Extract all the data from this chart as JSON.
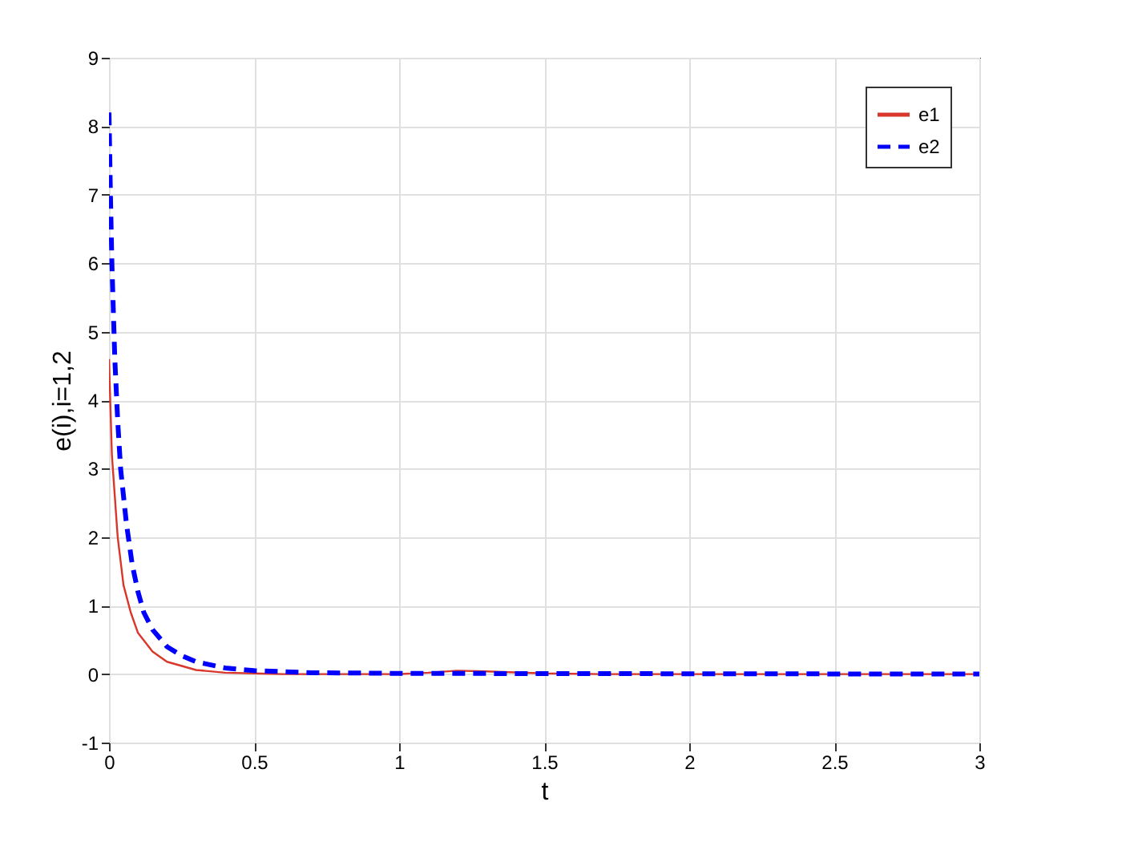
{
  "chart_data": {
    "type": "line",
    "xlabel": "t",
    "ylabel": "e(i),i=1,2",
    "xlim": [
      0,
      3
    ],
    "ylim": [
      -1,
      9
    ],
    "xticks": [
      0,
      0.5,
      1,
      1.5,
      2,
      2.5,
      3
    ],
    "yticks": [
      -1,
      0,
      1,
      2,
      3,
      4,
      5,
      6,
      7,
      8,
      9
    ],
    "grid": true,
    "legend": "top right",
    "series": [
      {
        "name": "e1",
        "color": "#d9372b",
        "line_style": "solid",
        "x": [
          0,
          0.01,
          0.02,
          0.03,
          0.05,
          0.075,
          0.1,
          0.15,
          0.2,
          0.3,
          0.4,
          0.5,
          0.6,
          1,
          1.1,
          1.2,
          1.3,
          1.5,
          1.7,
          3
        ],
        "values": [
          4.6,
          3.2,
          2.6,
          2,
          1.3,
          0.9,
          0.6,
          0.33,
          0.18,
          0.06,
          0.02,
          0.01,
          0,
          0,
          0.02,
          0.05,
          0.04,
          0.01,
          0,
          0
        ]
      },
      {
        "name": "e2",
        "color": "#0000ff",
        "line_style": "dashed",
        "x": [
          0,
          0.005,
          0.01,
          0.02,
          0.03,
          0.04,
          0.06,
          0.08,
          0.1,
          0.12,
          0.15,
          0.2,
          0.25,
          0.3,
          0.4,
          0.5,
          0.7,
          1,
          3
        ],
        "values": [
          8.2,
          7,
          6,
          4.6,
          3.7,
          3,
          2.2,
          1.6,
          1.2,
          0.9,
          0.65,
          0.4,
          0.27,
          0.18,
          0.09,
          0.05,
          0.02,
          0.01,
          0
        ]
      }
    ]
  }
}
